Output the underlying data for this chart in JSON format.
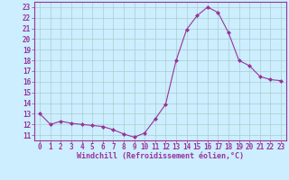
{
  "x": [
    0,
    1,
    2,
    3,
    4,
    5,
    6,
    7,
    8,
    9,
    10,
    11,
    12,
    13,
    14,
    15,
    16,
    17,
    18,
    19,
    20,
    21,
    22,
    23
  ],
  "y": [
    13.0,
    12.0,
    12.3,
    12.1,
    12.0,
    11.9,
    11.8,
    11.5,
    11.1,
    10.8,
    11.2,
    12.5,
    13.9,
    18.0,
    20.9,
    22.2,
    23.0,
    22.5,
    20.6,
    18.0,
    17.5,
    16.5,
    16.2,
    16.1
  ],
  "line_color": "#993399",
  "marker": "D",
  "marker_size": 2,
  "bg_color": "#cceeff",
  "grid_color": "#aacccc",
  "xlabel": "Windchill (Refroidissement éolien,°C)",
  "xlabel_color": "#993399",
  "xlabel_fontsize": 6.0,
  "tick_color": "#993399",
  "tick_fontsize": 5.5,
  "ylim": [
    10.5,
    23.5
  ],
  "xlim": [
    -0.5,
    23.5
  ],
  "yticks": [
    11,
    12,
    13,
    14,
    15,
    16,
    17,
    18,
    19,
    20,
    21,
    22,
    23
  ],
  "xticks": [
    0,
    1,
    2,
    3,
    4,
    5,
    6,
    7,
    8,
    9,
    10,
    11,
    12,
    13,
    14,
    15,
    16,
    17,
    18,
    19,
    20,
    21,
    22,
    23
  ]
}
